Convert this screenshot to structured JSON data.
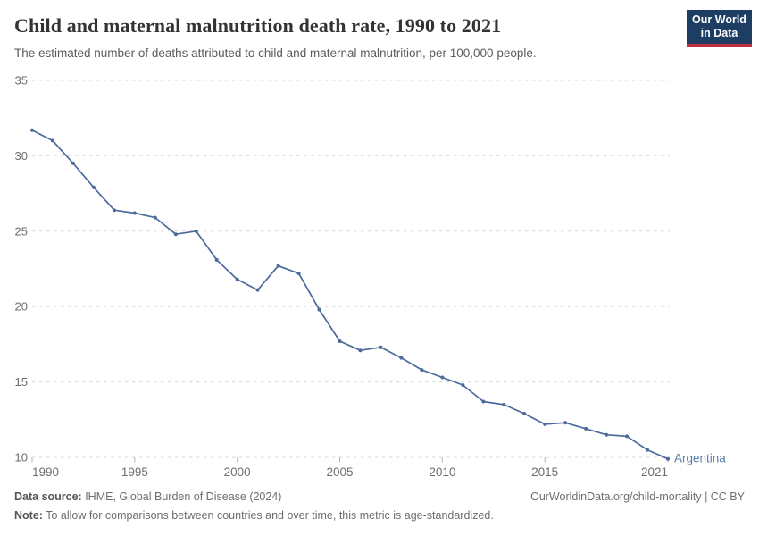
{
  "header": {
    "title": "Child and maternal malnutrition death rate, 1990 to 2021",
    "subtitle": "The estimated number of deaths attributed to child and maternal malnutrition, per 100,000 people.",
    "logo": {
      "line1": "Our World",
      "line2": "in Data",
      "bg_color": "#1d3d63",
      "bar_color": "#c0303c"
    }
  },
  "chart_data": {
    "type": "line",
    "title": "Child and maternal malnutrition death rate, 1990 to 2021",
    "xlabel": "",
    "ylabel": "",
    "xlim": [
      1990,
      2021
    ],
    "ylim": [
      10,
      35
    ],
    "x_ticks": [
      1990,
      1995,
      2000,
      2005,
      2010,
      2015,
      2021
    ],
    "y_ticks": [
      35,
      30,
      25,
      20,
      15,
      10
    ],
    "grid": "horizontal-dashed",
    "legend_position": "end-of-line-label",
    "series": [
      {
        "name": "Argentina",
        "color": "#4c6a9c",
        "label_color": "#567dab",
        "x": [
          1990,
          1991,
          1992,
          1993,
          1994,
          1995,
          1996,
          1997,
          1998,
          1999,
          2000,
          2001,
          2002,
          2003,
          2004,
          2005,
          2006,
          2007,
          2008,
          2009,
          2010,
          2011,
          2012,
          2013,
          2014,
          2015,
          2016,
          2017,
          2018,
          2019,
          2020,
          2021
        ],
        "values": [
          31.7,
          31.0,
          29.5,
          27.9,
          26.4,
          26.2,
          25.9,
          24.8,
          25.0,
          23.1,
          21.8,
          21.1,
          22.7,
          22.2,
          19.8,
          17.7,
          17.1,
          17.3,
          16.6,
          15.8,
          15.3,
          14.8,
          13.7,
          13.5,
          12.9,
          12.2,
          12.3,
          11.9,
          11.5,
          11.4,
          10.5,
          9.9
        ]
      }
    ]
  },
  "footer": {
    "source_label": "Data source:",
    "source_text": " IHME, Global Burden of Disease (2024)",
    "attribution": "OurWorldinData.org/child-mortality | CC BY",
    "note_label": "Note:",
    "note_text": " To allow for comparisons between countries and over time, this metric is age-standardized."
  }
}
